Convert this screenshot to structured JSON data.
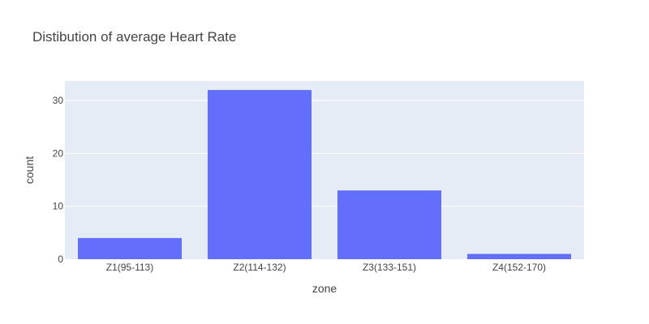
{
  "chart_data": {
    "type": "bar",
    "title": "Distibution of average Heart Rate",
    "xlabel": "zone",
    "ylabel": "count",
    "categories": [
      "Z1(95-113)",
      "Z2(114-132)",
      "Z3(133-151)",
      "Z4(152-170)"
    ],
    "values": [
      4,
      32,
      13,
      1
    ],
    "ylim": [
      0,
      33.7
    ],
    "yticks": [
      0,
      10,
      20,
      30
    ],
    "grid": true,
    "legend": "none",
    "colors": {
      "bar": "#636efa",
      "plot_background": "#e5ecf6",
      "grid": "#ffffff",
      "text": "#444444"
    }
  }
}
